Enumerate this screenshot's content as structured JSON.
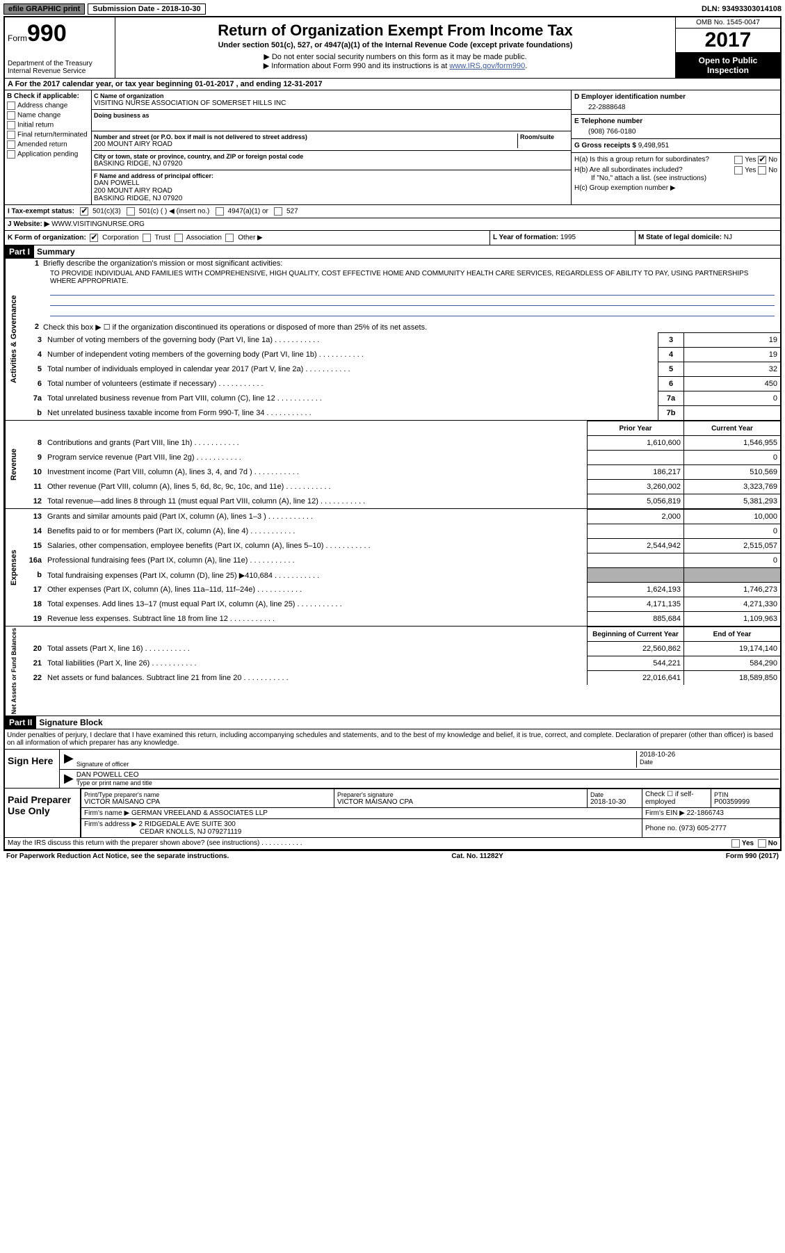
{
  "top": {
    "efile": "efile GRAPHIC print",
    "subdate_label": "Submission Date - ",
    "subdate": "2018-10-30",
    "dln_label": "DLN: ",
    "dln": "93493303014108"
  },
  "header": {
    "form_word": "Form",
    "form_num": "990",
    "dept1": "Department of the Treasury",
    "dept2": "Internal Revenue Service",
    "title": "Return of Organization Exempt From Income Tax",
    "subtitle": "Under section 501(c), 527, or 4947(a)(1) of the Internal Revenue Code (except private foundations)",
    "arrow1": "▶ Do not enter social security numbers on this form as it may be made public.",
    "arrow2_pre": "▶ Information about Form 990 and its instructions is at ",
    "arrow2_link": "www.IRS.gov/form990",
    "omb": "OMB No. 1545-0047",
    "year": "2017",
    "open": "Open to Public Inspection"
  },
  "rowA": "A   For the 2017 calendar year, or tax year beginning 01-01-2017    , and ending 12-31-2017",
  "B": {
    "hdr": "B Check if applicable:",
    "addr": "Address change",
    "name": "Name change",
    "init": "Initial return",
    "final": "Final return/terminated",
    "amend": "Amended return",
    "app": "Application pending"
  },
  "C": {
    "name_lbl": "C Name of organization",
    "name": "VISITING NURSE ASSOCIATION OF SOMERSET HILLS INC",
    "dba_lbl": "Doing business as",
    "dba": "",
    "street_lbl": "Number and street (or P.O. box if mail is not delivered to street address)",
    "room_lbl": "Room/suite",
    "street": "200 MOUNT AIRY ROAD",
    "city_lbl": "City or town, state or province, country, and ZIP or foreign postal code",
    "city": "BASKING RIDGE, NJ  07920"
  },
  "F": {
    "lbl": "F Name and address of principal officer:",
    "name": "DAN POWELL",
    "addr1": "200 MOUNT AIRY ROAD",
    "addr2": "BASKING RIDGE, NJ  07920"
  },
  "D": {
    "lbl": "D Employer identification number",
    "val": "22-2888648"
  },
  "E": {
    "lbl": "E Telephone number",
    "val": "(908) 766-0180"
  },
  "G": {
    "lbl": "G Gross receipts $ ",
    "val": "9,498,951"
  },
  "H": {
    "a_lbl": "H(a)  Is this a group return for subordinates?",
    "b_lbl": "H(b)  Are all subordinates included?",
    "b_note": "If \"No,\" attach a list. (see instructions)",
    "c_lbl": "H(c)  Group exemption number ▶"
  },
  "I": {
    "lbl": "I   Tax-exempt status:",
    "o1": "501(c)(3)",
    "o2": "501(c) (   ) ◀ (insert no.)",
    "o3": "4947(a)(1) or",
    "o4": "527"
  },
  "J": {
    "lbl": "J   Website: ▶ ",
    "val": "WWW.VISITINGNURSE.ORG"
  },
  "K": {
    "lbl": "K Form of organization:",
    "corp": "Corporation",
    "trust": "Trust",
    "assoc": "Association",
    "other": "Other ▶"
  },
  "L": {
    "lbl": "L Year of formation: ",
    "val": "1995"
  },
  "M": {
    "lbl": "M State of legal domicile: ",
    "val": "NJ"
  },
  "partI": {
    "hdr": "Part I",
    "title": "Summary"
  },
  "summary": {
    "l1": "Briefly describe the organization's mission or most significant activities:",
    "mission": "TO PROVIDE INDIVIDUAL AND FAMILIES WITH COMPREHENSIVE, HIGH QUALITY, COST EFFECTIVE HOME AND COMMUNITY HEALTH CARE SERVICES, REGARDLESS OF ABILITY TO PAY, USING PARTNERSHIPS WHERE APPROPRIATE.",
    "l2": "Check this box ▶ ☐  if the organization discontinued its operations or disposed of more than 25% of its net assets."
  },
  "vlabels": {
    "ag": "Activities & Governance",
    "rev": "Revenue",
    "exp": "Expenses",
    "na": "Net Assets or Fund Balances"
  },
  "lines_ag": [
    {
      "n": "3",
      "d": "Number of voting members of the governing body (Part VI, line 1a)",
      "b": "3",
      "v": "19"
    },
    {
      "n": "4",
      "d": "Number of independent voting members of the governing body (Part VI, line 1b)",
      "b": "4",
      "v": "19"
    },
    {
      "n": "5",
      "d": "Total number of individuals employed in calendar year 2017 (Part V, line 2a)",
      "b": "5",
      "v": "32"
    },
    {
      "n": "6",
      "d": "Total number of volunteers (estimate if necessary)",
      "b": "6",
      "v": "450"
    },
    {
      "n": "7a",
      "d": "Total unrelated business revenue from Part VIII, column (C), line 12",
      "b": "7a",
      "v": "0"
    },
    {
      "n": "b",
      "d": "Net unrelated business taxable income from Form 990-T, line 34",
      "b": "7b",
      "v": ""
    }
  ],
  "col_hdr": {
    "py": "Prior Year",
    "cy": "Current Year",
    "boy": "Beginning of Current Year",
    "eoy": "End of Year"
  },
  "lines_rev": [
    {
      "n": "8",
      "d": "Contributions and grants (Part VIII, line 1h)",
      "py": "1,610,600",
      "cy": "1,546,955"
    },
    {
      "n": "9",
      "d": "Program service revenue (Part VIII, line 2g)",
      "py": "",
      "cy": "0"
    },
    {
      "n": "10",
      "d": "Investment income (Part VIII, column (A), lines 3, 4, and 7d )",
      "py": "186,217",
      "cy": "510,569"
    },
    {
      "n": "11",
      "d": "Other revenue (Part VIII, column (A), lines 5, 6d, 8c, 9c, 10c, and 11e)",
      "py": "3,260,002",
      "cy": "3,323,769"
    },
    {
      "n": "12",
      "d": "Total revenue—add lines 8 through 11 (must equal Part VIII, column (A), line 12)",
      "py": "5,056,819",
      "cy": "5,381,293"
    }
  ],
  "lines_exp": [
    {
      "n": "13",
      "d": "Grants and similar amounts paid (Part IX, column (A), lines 1–3 )",
      "py": "2,000",
      "cy": "10,000"
    },
    {
      "n": "14",
      "d": "Benefits paid to or for members (Part IX, column (A), line 4)",
      "py": "",
      "cy": "0"
    },
    {
      "n": "15",
      "d": "Salaries, other compensation, employee benefits (Part IX, column (A), lines 5–10)",
      "py": "2,544,942",
      "cy": "2,515,057"
    },
    {
      "n": "16a",
      "d": "Professional fundraising fees (Part IX, column (A), line 11e)",
      "py": "",
      "cy": "0"
    },
    {
      "n": "b",
      "d": "Total fundraising expenses (Part IX, column (D), line 25) ▶410,684",
      "py": "GREY",
      "cy": "GREY"
    },
    {
      "n": "17",
      "d": "Other expenses (Part IX, column (A), lines 11a–11d, 11f–24e)",
      "py": "1,624,193",
      "cy": "1,746,273"
    },
    {
      "n": "18",
      "d": "Total expenses. Add lines 13–17 (must equal Part IX, column (A), line 25)",
      "py": "4,171,135",
      "cy": "4,271,330"
    },
    {
      "n": "19",
      "d": "Revenue less expenses. Subtract line 18 from line 12",
      "py": "885,684",
      "cy": "1,109,963"
    }
  ],
  "lines_na": [
    {
      "n": "20",
      "d": "Total assets (Part X, line 16)",
      "py": "22,560,862",
      "cy": "19,174,140"
    },
    {
      "n": "21",
      "d": "Total liabilities (Part X, line 26)",
      "py": "544,221",
      "cy": "584,290"
    },
    {
      "n": "22",
      "d": "Net assets or fund balances. Subtract line 21 from line 20",
      "py": "22,016,641",
      "cy": "18,589,850"
    }
  ],
  "partII": {
    "hdr": "Part II",
    "title": "Signature Block"
  },
  "sig": {
    "decl": "Under penalties of perjury, I declare that I have examined this return, including accompanying schedules and statements, and to the best of my knowledge and belief, it is true, correct, and complete. Declaration of preparer (other than officer) is based on all information of which preparer has any knowledge.",
    "here": "Sign Here",
    "sig_of": "Signature of officer",
    "date": "Date",
    "date_val": "2018-10-26",
    "name": "DAN POWELL CEO",
    "name_lbl": "Type or print name and title"
  },
  "prep": {
    "hdr": "Paid Preparer Use Only",
    "pn_lbl": "Print/Type preparer's name",
    "pn": "VICTOR MAISANO CPA",
    "ps_lbl": "Preparer's signature",
    "ps": "VICTOR MAISANO CPA",
    "d_lbl": "Date",
    "d": "2018-10-30",
    "se": "Check ☐ if self-employed",
    "ptin_lbl": "PTIN",
    "ptin": "P00359999",
    "fn_lbl": "Firm's name      ▶ ",
    "fn": "GERMAN VREELAND & ASSOCIATES LLP",
    "fein_lbl": "Firm's EIN ▶ ",
    "fein": "22-1866743",
    "fa_lbl": "Firm's address ▶ ",
    "fa": "2 RIDGEDALE AVE SUITE 300",
    "fa2": "CEDAR KNOLLS, NJ  079271119",
    "ph_lbl": "Phone no. ",
    "ph": "(973) 605-2777"
  },
  "footer": {
    "discuss": "May the IRS discuss this return with the preparer shown above? (see instructions)",
    "pra": "For Paperwork Reduction Act Notice, see the separate instructions.",
    "cat": "Cat. No. 11282Y",
    "form": "Form 990 (2017)"
  }
}
